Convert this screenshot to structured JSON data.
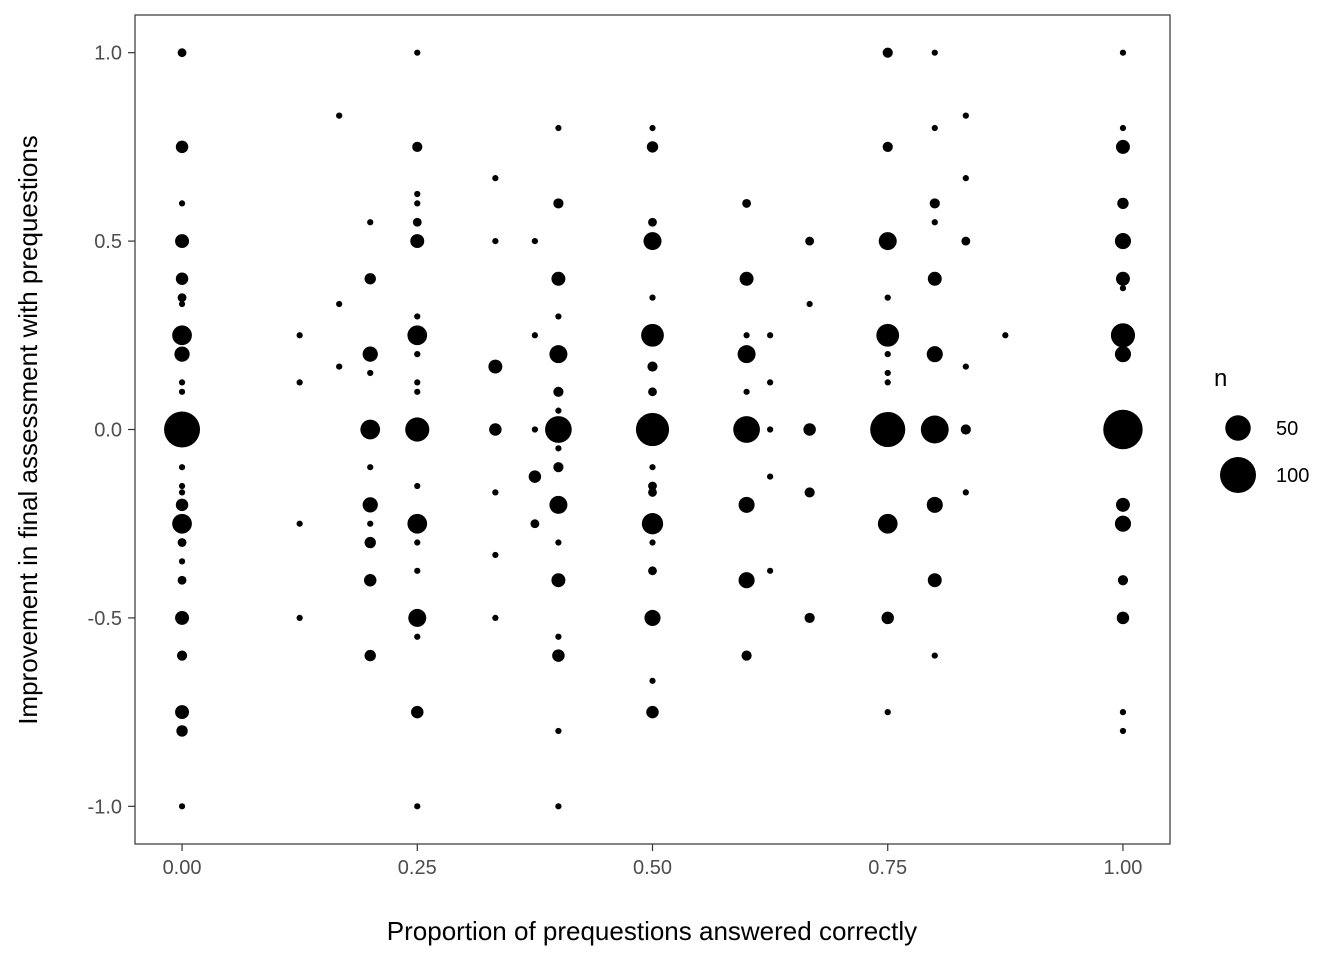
{
  "chart_data": {
    "type": "scatter",
    "title": "",
    "xlabel": "Proportion of prequestions answered correctly",
    "ylabel": "Improvement in final assessment with prequestions",
    "xlim": [
      -0.05,
      1.05
    ],
    "ylim": [
      -1.1,
      1.1
    ],
    "x_ticks": [
      0,
      0.25,
      0.5,
      0.75,
      1
    ],
    "x_tick_labels": [
      "0.00",
      "0.25",
      "0.50",
      "0.75",
      "1.00"
    ],
    "y_ticks": [
      -1,
      -0.5,
      0,
      0.5,
      1
    ],
    "y_tick_labels": [
      "-1.0",
      "-0.5",
      "0.0",
      "0.5",
      "1.0"
    ],
    "grid": false,
    "point_color": "#000000",
    "size_legend": {
      "title": "n",
      "position": "right",
      "entries": [
        {
          "label": "50",
          "n": 50
        },
        {
          "label": "100",
          "n": 100
        }
      ]
    },
    "points": [
      {
        "x": 0,
        "y": 1.0,
        "n": 6
      },
      {
        "x": 0,
        "y": 0.75,
        "n": 12
      },
      {
        "x": 0,
        "y": 0.6,
        "n": 3
      },
      {
        "x": 0,
        "y": 0.5,
        "n": 15
      },
      {
        "x": 0,
        "y": 0.4,
        "n": 12
      },
      {
        "x": 0,
        "y": 0.35,
        "n": 6
      },
      {
        "x": 0,
        "y": 0.333,
        "n": 3
      },
      {
        "x": 0,
        "y": 0.25,
        "n": 30
      },
      {
        "x": 0,
        "y": 0.2,
        "n": 18
      },
      {
        "x": 0,
        "y": 0.125,
        "n": 3
      },
      {
        "x": 0,
        "y": 0.1,
        "n": 3
      },
      {
        "x": 0,
        "y": 0,
        "n": 100
      },
      {
        "x": 0,
        "y": -0.1,
        "n": 3
      },
      {
        "x": 0,
        "y": -0.15,
        "n": 3
      },
      {
        "x": 0,
        "y": -0.167,
        "n": 3
      },
      {
        "x": 0,
        "y": -0.2,
        "n": 12
      },
      {
        "x": 0,
        "y": -0.25,
        "n": 30
      },
      {
        "x": 0,
        "y": -0.3,
        "n": 6
      },
      {
        "x": 0,
        "y": -0.35,
        "n": 3
      },
      {
        "x": 0,
        "y": -0.4,
        "n": 6
      },
      {
        "x": 0,
        "y": -0.5,
        "n": 15
      },
      {
        "x": 0,
        "y": -0.6,
        "n": 8
      },
      {
        "x": 0,
        "y": -0.75,
        "n": 15
      },
      {
        "x": 0,
        "y": -0.8,
        "n": 10
      },
      {
        "x": 0,
        "y": -1.0,
        "n": 3
      },
      {
        "x": 0.125,
        "y": 0.25,
        "n": 3
      },
      {
        "x": 0.125,
        "y": 0.125,
        "n": 3
      },
      {
        "x": 0.125,
        "y": -0.25,
        "n": 3
      },
      {
        "x": 0.125,
        "y": -0.5,
        "n": 3
      },
      {
        "x": 0.167,
        "y": 0.833,
        "n": 3
      },
      {
        "x": 0.167,
        "y": 0.333,
        "n": 3
      },
      {
        "x": 0.167,
        "y": 0.167,
        "n": 3
      },
      {
        "x": 0.2,
        "y": 0.55,
        "n": 3
      },
      {
        "x": 0.2,
        "y": 0.4,
        "n": 10
      },
      {
        "x": 0.2,
        "y": 0.2,
        "n": 18
      },
      {
        "x": 0.2,
        "y": 0.15,
        "n": 3
      },
      {
        "x": 0.2,
        "y": 0,
        "n": 30
      },
      {
        "x": 0.2,
        "y": -0.1,
        "n": 3
      },
      {
        "x": 0.2,
        "y": -0.2,
        "n": 18
      },
      {
        "x": 0.2,
        "y": -0.25,
        "n": 3
      },
      {
        "x": 0.2,
        "y": -0.3,
        "n": 10
      },
      {
        "x": 0.2,
        "y": -0.4,
        "n": 12
      },
      {
        "x": 0.2,
        "y": -0.6,
        "n": 10
      },
      {
        "x": 0.25,
        "y": 1.0,
        "n": 3
      },
      {
        "x": 0.25,
        "y": 0.75,
        "n": 8
      },
      {
        "x": 0.25,
        "y": 0.625,
        "n": 3
      },
      {
        "x": 0.25,
        "y": 0.6,
        "n": 3
      },
      {
        "x": 0.25,
        "y": 0.55,
        "n": 6
      },
      {
        "x": 0.25,
        "y": 0.5,
        "n": 15
      },
      {
        "x": 0.25,
        "y": 0.3,
        "n": 3
      },
      {
        "x": 0.25,
        "y": 0.25,
        "n": 30
      },
      {
        "x": 0.25,
        "y": 0.2,
        "n": 3
      },
      {
        "x": 0.25,
        "y": 0.125,
        "n": 3
      },
      {
        "x": 0.25,
        "y": 0.1,
        "n": 3
      },
      {
        "x": 0.25,
        "y": 0,
        "n": 45
      },
      {
        "x": 0.25,
        "y": -0.15,
        "n": 3
      },
      {
        "x": 0.25,
        "y": -0.25,
        "n": 30
      },
      {
        "x": 0.25,
        "y": -0.3,
        "n": 3
      },
      {
        "x": 0.25,
        "y": -0.375,
        "n": 3
      },
      {
        "x": 0.25,
        "y": -0.5,
        "n": 25
      },
      {
        "x": 0.25,
        "y": -0.55,
        "n": 3
      },
      {
        "x": 0.25,
        "y": -0.75,
        "n": 12
      },
      {
        "x": 0.25,
        "y": -1.0,
        "n": 3
      },
      {
        "x": 0.333,
        "y": 0.667,
        "n": 3
      },
      {
        "x": 0.333,
        "y": 0.5,
        "n": 3
      },
      {
        "x": 0.333,
        "y": 0.167,
        "n": 15
      },
      {
        "x": 0.333,
        "y": 0,
        "n": 12
      },
      {
        "x": 0.333,
        "y": -0.167,
        "n": 3
      },
      {
        "x": 0.333,
        "y": -0.333,
        "n": 3
      },
      {
        "x": 0.333,
        "y": -0.5,
        "n": 3
      },
      {
        "x": 0.375,
        "y": 0.5,
        "n": 3
      },
      {
        "x": 0.375,
        "y": 0.25,
        "n": 3
      },
      {
        "x": 0.375,
        "y": 0,
        "n": 3
      },
      {
        "x": 0.375,
        "y": -0.125,
        "n": 12
      },
      {
        "x": 0.375,
        "y": -0.25,
        "n": 6
      },
      {
        "x": 0.4,
        "y": 0.8,
        "n": 3
      },
      {
        "x": 0.4,
        "y": 0.6,
        "n": 8
      },
      {
        "x": 0.4,
        "y": 0.4,
        "n": 15
      },
      {
        "x": 0.4,
        "y": 0.3,
        "n": 3
      },
      {
        "x": 0.4,
        "y": 0.2,
        "n": 25
      },
      {
        "x": 0.4,
        "y": 0.1,
        "n": 8
      },
      {
        "x": 0.4,
        "y": 0.05,
        "n": 3
      },
      {
        "x": 0.4,
        "y": 0,
        "n": 55
      },
      {
        "x": 0.4,
        "y": -0.05,
        "n": 3
      },
      {
        "x": 0.4,
        "y": -0.1,
        "n": 8
      },
      {
        "x": 0.4,
        "y": -0.2,
        "n": 25
      },
      {
        "x": 0.4,
        "y": -0.3,
        "n": 3
      },
      {
        "x": 0.4,
        "y": -0.4,
        "n": 15
      },
      {
        "x": 0.4,
        "y": -0.55,
        "n": 3
      },
      {
        "x": 0.4,
        "y": -0.6,
        "n": 12
      },
      {
        "x": 0.4,
        "y": -0.8,
        "n": 3
      },
      {
        "x": 0.4,
        "y": -1.0,
        "n": 3
      },
      {
        "x": 0.5,
        "y": 0.8,
        "n": 3
      },
      {
        "x": 0.5,
        "y": 0.75,
        "n": 10
      },
      {
        "x": 0.5,
        "y": 0.55,
        "n": 6
      },
      {
        "x": 0.5,
        "y": 0.5,
        "n": 25
      },
      {
        "x": 0.5,
        "y": 0.35,
        "n": 3
      },
      {
        "x": 0.5,
        "y": 0.25,
        "n": 40
      },
      {
        "x": 0.5,
        "y": 0.167,
        "n": 8
      },
      {
        "x": 0.5,
        "y": 0.1,
        "n": 6
      },
      {
        "x": 0.5,
        "y": 0,
        "n": 85
      },
      {
        "x": 0.5,
        "y": -0.1,
        "n": 3
      },
      {
        "x": 0.5,
        "y": -0.15,
        "n": 6
      },
      {
        "x": 0.5,
        "y": -0.167,
        "n": 6
      },
      {
        "x": 0.5,
        "y": -0.25,
        "n": 35
      },
      {
        "x": 0.5,
        "y": -0.3,
        "n": 3
      },
      {
        "x": 0.5,
        "y": -0.375,
        "n": 6
      },
      {
        "x": 0.5,
        "y": -0.5,
        "n": 20
      },
      {
        "x": 0.5,
        "y": -0.667,
        "n": 3
      },
      {
        "x": 0.5,
        "y": -0.75,
        "n": 12
      },
      {
        "x": 0.6,
        "y": 0.6,
        "n": 6
      },
      {
        "x": 0.6,
        "y": 0.4,
        "n": 15
      },
      {
        "x": 0.6,
        "y": 0.25,
        "n": 3
      },
      {
        "x": 0.6,
        "y": 0.2,
        "n": 25
      },
      {
        "x": 0.6,
        "y": 0.1,
        "n": 3
      },
      {
        "x": 0.6,
        "y": 0,
        "n": 55
      },
      {
        "x": 0.6,
        "y": -0.2,
        "n": 20
      },
      {
        "x": 0.6,
        "y": -0.4,
        "n": 20
      },
      {
        "x": 0.6,
        "y": -0.6,
        "n": 8
      },
      {
        "x": 0.625,
        "y": 0.25,
        "n": 3
      },
      {
        "x": 0.625,
        "y": 0.125,
        "n": 3
      },
      {
        "x": 0.625,
        "y": 0,
        "n": 3
      },
      {
        "x": 0.625,
        "y": -0.125,
        "n": 3
      },
      {
        "x": 0.625,
        "y": -0.375,
        "n": 3
      },
      {
        "x": 0.667,
        "y": 0.5,
        "n": 6
      },
      {
        "x": 0.667,
        "y": 0.333,
        "n": 3
      },
      {
        "x": 0.667,
        "y": 0,
        "n": 12
      },
      {
        "x": 0.667,
        "y": -0.167,
        "n": 8
      },
      {
        "x": 0.667,
        "y": -0.5,
        "n": 8
      },
      {
        "x": 0.75,
        "y": 1.0,
        "n": 8
      },
      {
        "x": 0.75,
        "y": 0.75,
        "n": 8
      },
      {
        "x": 0.75,
        "y": 0.5,
        "n": 25
      },
      {
        "x": 0.75,
        "y": 0.35,
        "n": 3
      },
      {
        "x": 0.75,
        "y": 0.25,
        "n": 40
      },
      {
        "x": 0.75,
        "y": 0.2,
        "n": 3
      },
      {
        "x": 0.75,
        "y": 0.15,
        "n": 3
      },
      {
        "x": 0.75,
        "y": 0.125,
        "n": 3
      },
      {
        "x": 0.75,
        "y": 0,
        "n": 95
      },
      {
        "x": 0.75,
        "y": -0.25,
        "n": 30
      },
      {
        "x": 0.75,
        "y": -0.5,
        "n": 12
      },
      {
        "x": 0.75,
        "y": -0.75,
        "n": 3
      },
      {
        "x": 0.8,
        "y": 1.0,
        "n": 3
      },
      {
        "x": 0.8,
        "y": 0.8,
        "n": 3
      },
      {
        "x": 0.8,
        "y": 0.6,
        "n": 8
      },
      {
        "x": 0.8,
        "y": 0.55,
        "n": 3
      },
      {
        "x": 0.8,
        "y": 0.4,
        "n": 15
      },
      {
        "x": 0.8,
        "y": 0.2,
        "n": 20
      },
      {
        "x": 0.8,
        "y": 0,
        "n": 60
      },
      {
        "x": 0.8,
        "y": -0.2,
        "n": 20
      },
      {
        "x": 0.8,
        "y": -0.4,
        "n": 15
      },
      {
        "x": 0.8,
        "y": -0.6,
        "n": 3
      },
      {
        "x": 0.833,
        "y": 0.833,
        "n": 3
      },
      {
        "x": 0.833,
        "y": 0.667,
        "n": 3
      },
      {
        "x": 0.833,
        "y": 0.5,
        "n": 6
      },
      {
        "x": 0.833,
        "y": 0.167,
        "n": 3
      },
      {
        "x": 0.833,
        "y": 0,
        "n": 8
      },
      {
        "x": 0.833,
        "y": -0.167,
        "n": 3
      },
      {
        "x": 0.875,
        "y": 0.25,
        "n": 3
      },
      {
        "x": 1,
        "y": 1.0,
        "n": 3
      },
      {
        "x": 1,
        "y": 0.8,
        "n": 3
      },
      {
        "x": 1,
        "y": 0.75,
        "n": 15
      },
      {
        "x": 1,
        "y": 0.6,
        "n": 10
      },
      {
        "x": 1,
        "y": 0.5,
        "n": 20
      },
      {
        "x": 1,
        "y": 0.4,
        "n": 15
      },
      {
        "x": 1,
        "y": 0.375,
        "n": 3
      },
      {
        "x": 1,
        "y": 0.25,
        "n": 45
      },
      {
        "x": 1,
        "y": 0.2,
        "n": 20
      },
      {
        "x": 1,
        "y": 0,
        "n": 120
      },
      {
        "x": 1,
        "y": -0.2,
        "n": 15
      },
      {
        "x": 1,
        "y": -0.25,
        "n": 20
      },
      {
        "x": 1,
        "y": -0.4,
        "n": 8
      },
      {
        "x": 1,
        "y": -0.5,
        "n": 12
      },
      {
        "x": 1,
        "y": -0.75,
        "n": 3
      },
      {
        "x": 1,
        "y": -0.8,
        "n": 3
      }
    ]
  }
}
